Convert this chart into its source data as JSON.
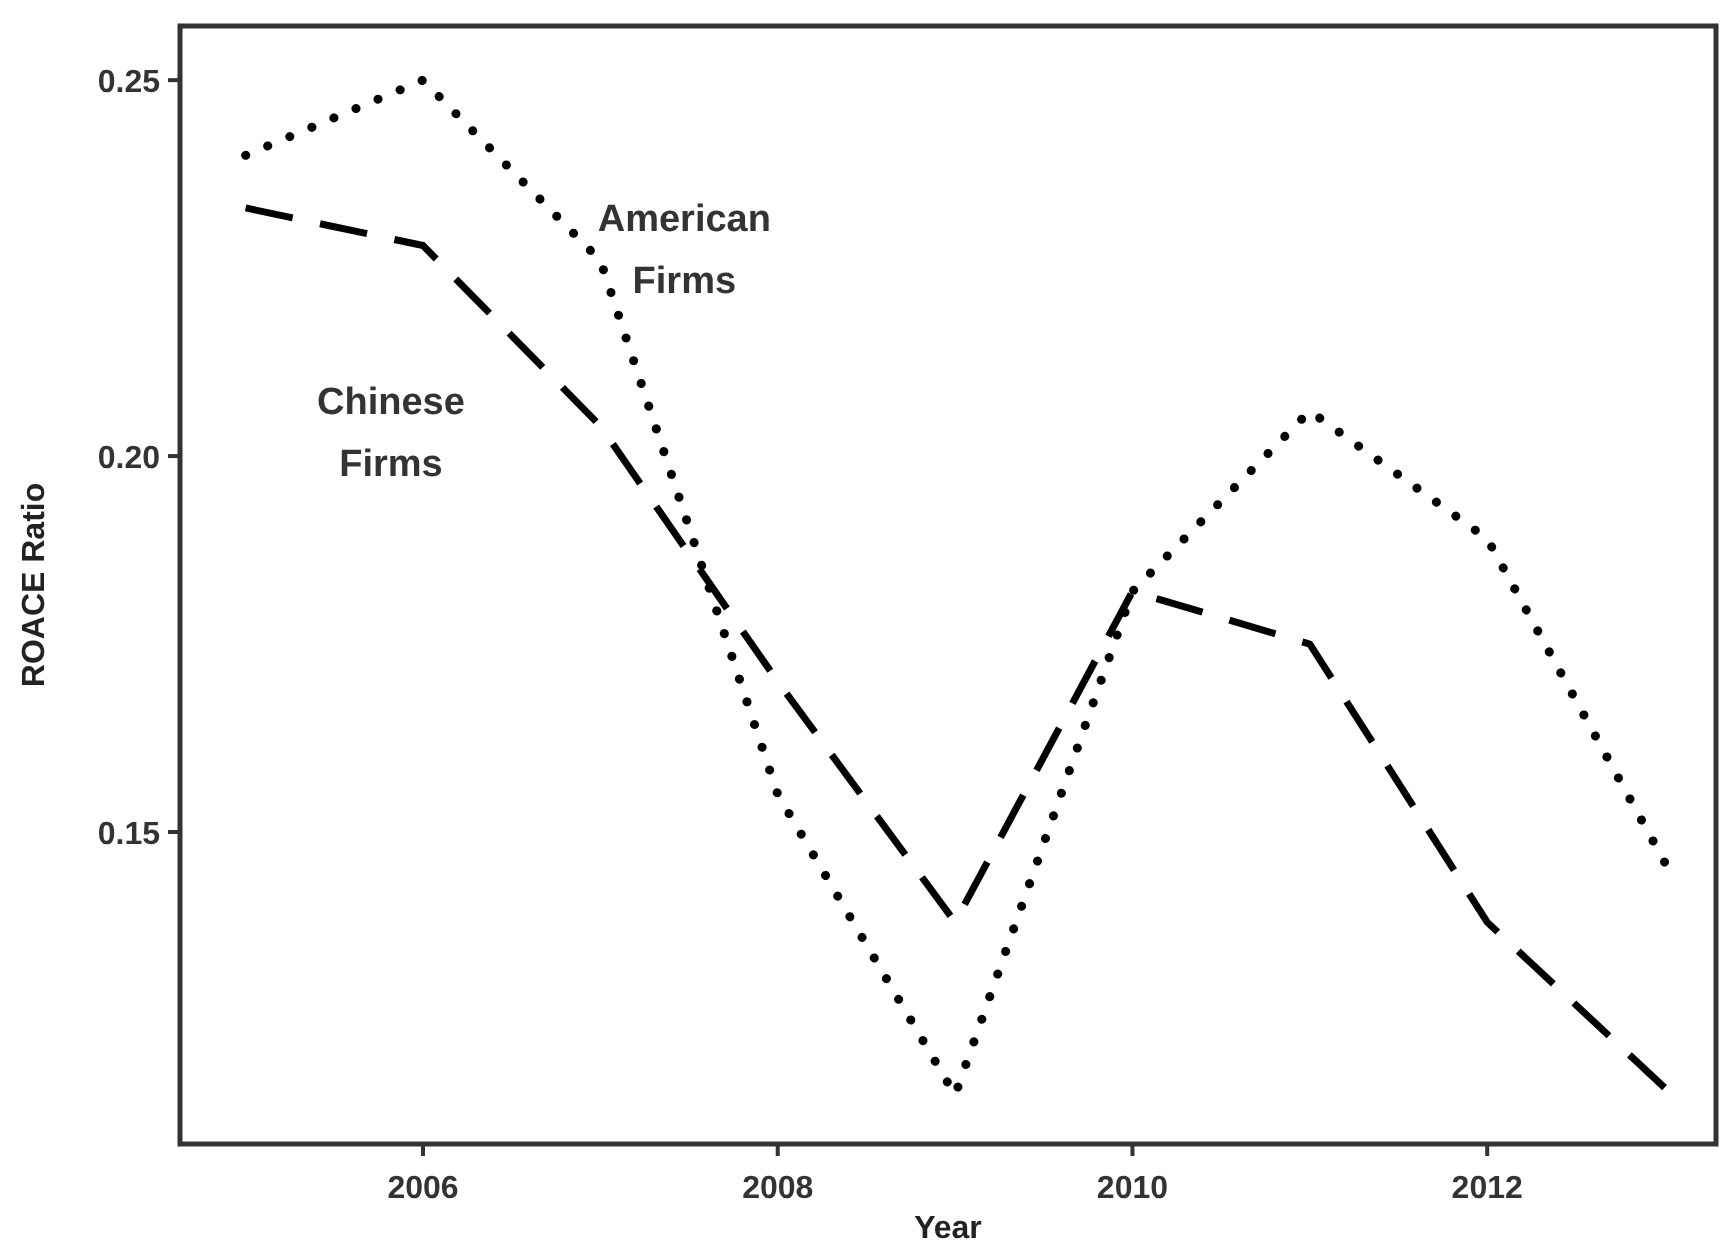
{
  "chart_data": {
    "type": "line",
    "xlabel": "Year",
    "ylabel": "ROACE Ratio",
    "x": [
      2005,
      2006,
      2007,
      2008,
      2009,
      2010,
      2011,
      2012,
      2013
    ],
    "series": [
      {
        "name": "American Firms",
        "color": "#000000",
        "line_style": "dotted",
        "values": [
          0.24,
          0.25,
          0.226,
          0.155,
          0.115,
          0.182,
          0.206,
          0.189,
          0.146
        ]
      },
      {
        "name": "Chinese Firms",
        "color": "#000000",
        "line_style": "dashed",
        "values": [
          0.233,
          0.228,
          0.204,
          0.17,
          0.138,
          0.182,
          0.175,
          0.138,
          0.116
        ]
      }
    ],
    "xlim": [
      2004.63,
      2013.29
    ],
    "ylim": [
      0.1085,
      0.2572
    ],
    "xticks": [
      2006,
      2008,
      2010,
      2012
    ],
    "yticks": [
      0.15,
      {
        "value": 0.2,
        "label": "0.20"
      },
      0.25
    ],
    "grid": false,
    "legend": false
  }
}
